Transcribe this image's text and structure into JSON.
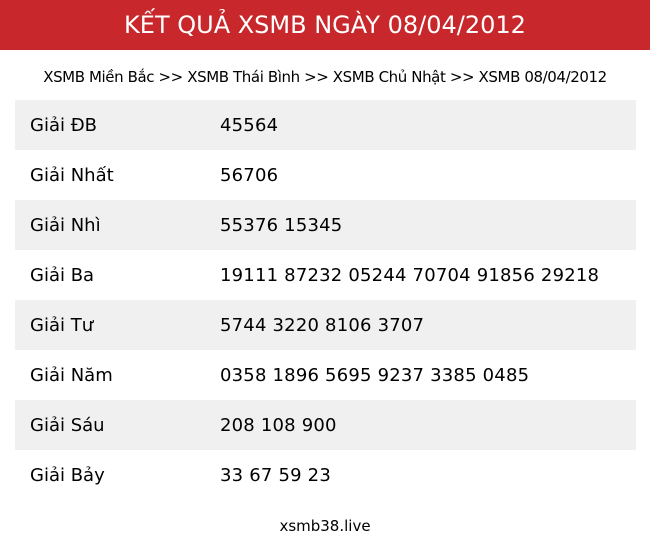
{
  "header": {
    "title": "KẾT QUẢ XSMB NGÀY 08/04/2012"
  },
  "breadcrumb": {
    "items": [
      "XSMB Miền Bắc",
      "XSMB Thái Bình",
      "XSMB Chủ Nhật",
      "XSMB 08/04/2012"
    ],
    "separator": ">>"
  },
  "results": [
    {
      "label": "Giải ĐB",
      "value": "45564"
    },
    {
      "label": "Giải Nhất",
      "value": "56706"
    },
    {
      "label": "Giải Nhì",
      "value": "55376 15345"
    },
    {
      "label": "Giải Ba",
      "value": "19111 87232 05244 70704 91856 29218"
    },
    {
      "label": "Giải Tư",
      "value": "5744 3220 8106 3707"
    },
    {
      "label": "Giải Năm",
      "value": "0358 1896 5695 9237 3385 0485"
    },
    {
      "label": "Giải Sáu",
      "value": "208 108 900"
    },
    {
      "label": "Giải Bảy",
      "value": "33 67 59 23"
    }
  ],
  "footer": {
    "site": "xsmb38.live"
  },
  "colors": {
    "header_bg": "#c8282b",
    "row_alt_bg": "#f0f0f0"
  }
}
